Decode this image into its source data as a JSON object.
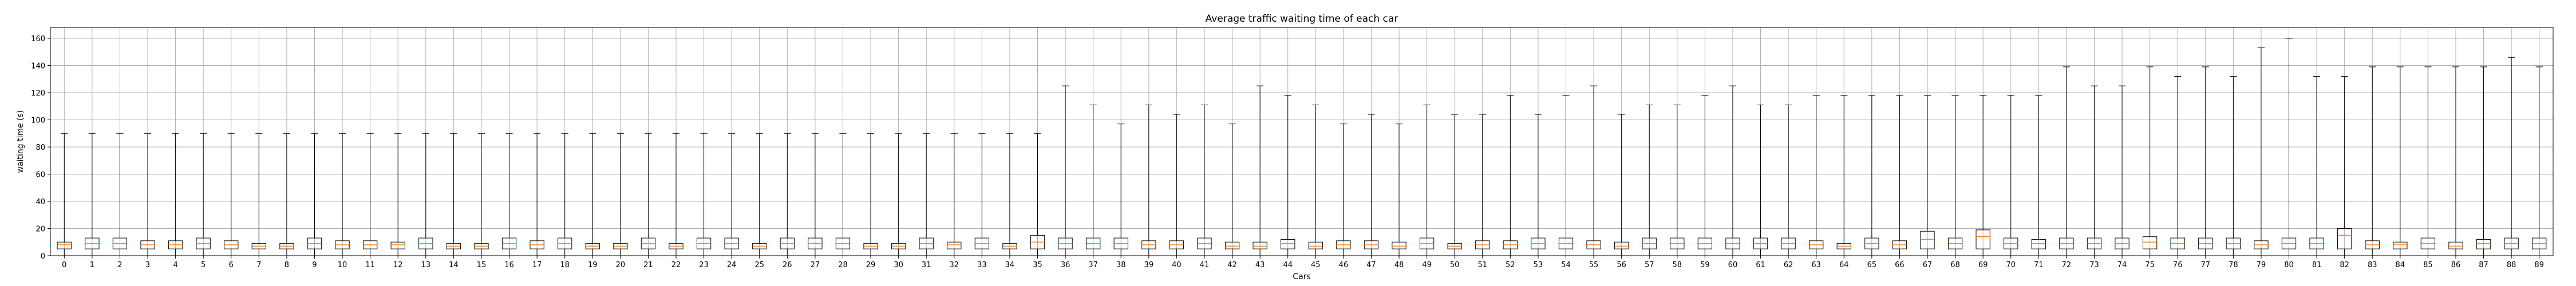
{
  "chart_data": {
    "type": "box",
    "title": "Average traffic waiting time of each car",
    "xlabel": "Cars",
    "ylabel": "waiting time (s)",
    "ylim": [
      0,
      168
    ],
    "yticks": [
      0,
      20,
      40,
      60,
      80,
      100,
      120,
      140,
      160
    ],
    "grid": true,
    "colors": {
      "box": "#000000",
      "median": "#ff7f0e",
      "whisker": "#000000",
      "grid": "#b0b0b0"
    },
    "boxes": [
      {
        "label": "0",
        "q1": 5,
        "median": 8,
        "q3": 10,
        "whislo": 0,
        "whishi": 90
      },
      {
        "label": "1",
        "q1": 5,
        "median": 9,
        "q3": 13,
        "whislo": 0,
        "whishi": 90
      },
      {
        "label": "2",
        "q1": 5,
        "median": 9,
        "q3": 13,
        "whislo": 0,
        "whishi": 90
      },
      {
        "label": "3",
        "q1": 5,
        "median": 8,
        "q3": 11,
        "whislo": 0,
        "whishi": 90
      },
      {
        "label": "4",
        "q1": 5,
        "median": 8,
        "q3": 11,
        "whislo": 0,
        "whishi": 90
      },
      {
        "label": "5",
        "q1": 5,
        "median": 9,
        "q3": 13,
        "whislo": 0,
        "whishi": 90
      },
      {
        "label": "6",
        "q1": 5,
        "median": 8,
        "q3": 11,
        "whislo": 0,
        "whishi": 90
      },
      {
        "label": "7",
        "q1": 5,
        "median": 7,
        "q3": 9,
        "whislo": 0,
        "whishi": 90
      },
      {
        "label": "8",
        "q1": 5,
        "median": 7,
        "q3": 9,
        "whislo": 0,
        "whishi": 90
      },
      {
        "label": "9",
        "q1": 5,
        "median": 9,
        "q3": 13,
        "whislo": 0,
        "whishi": 90
      },
      {
        "label": "10",
        "q1": 5,
        "median": 8,
        "q3": 11,
        "whislo": 0,
        "whishi": 90
      },
      {
        "label": "11",
        "q1": 5,
        "median": 8,
        "q3": 11,
        "whislo": 0,
        "whishi": 90
      },
      {
        "label": "12",
        "q1": 5,
        "median": 8,
        "q3": 10,
        "whislo": 0,
        "whishi": 90
      },
      {
        "label": "13",
        "q1": 5,
        "median": 9,
        "q3": 13,
        "whislo": 0,
        "whishi": 90
      },
      {
        "label": "14",
        "q1": 5,
        "median": 7,
        "q3": 9,
        "whislo": 0,
        "whishi": 90
      },
      {
        "label": "15",
        "q1": 5,
        "median": 7,
        "q3": 9,
        "whislo": 0,
        "whishi": 90
      },
      {
        "label": "16",
        "q1": 5,
        "median": 9,
        "q3": 13,
        "whislo": 0,
        "whishi": 90
      },
      {
        "label": "17",
        "q1": 5,
        "median": 8,
        "q3": 11,
        "whislo": 0,
        "whishi": 90
      },
      {
        "label": "18",
        "q1": 5,
        "median": 9,
        "q3": 13,
        "whislo": 0,
        "whishi": 90
      },
      {
        "label": "19",
        "q1": 5,
        "median": 7,
        "q3": 9,
        "whislo": 0,
        "whishi": 90
      },
      {
        "label": "20",
        "q1": 5,
        "median": 7,
        "q3": 9,
        "whislo": 0,
        "whishi": 90
      },
      {
        "label": "21",
        "q1": 5,
        "median": 9,
        "q3": 13,
        "whislo": 0,
        "whishi": 90
      },
      {
        "label": "22",
        "q1": 5,
        "median": 7,
        "q3": 9,
        "whislo": 0,
        "whishi": 90
      },
      {
        "label": "23",
        "q1": 5,
        "median": 9,
        "q3": 13,
        "whislo": 0,
        "whishi": 90
      },
      {
        "label": "24",
        "q1": 5,
        "median": 9,
        "q3": 13,
        "whislo": 0,
        "whishi": 90
      },
      {
        "label": "25",
        "q1": 5,
        "median": 7,
        "q3": 9,
        "whislo": 0,
        "whishi": 90
      },
      {
        "label": "26",
        "q1": 5,
        "median": 9,
        "q3": 13,
        "whislo": 0,
        "whishi": 90
      },
      {
        "label": "27",
        "q1": 5,
        "median": 9,
        "q3": 13,
        "whislo": 0,
        "whishi": 90
      },
      {
        "label": "28",
        "q1": 5,
        "median": 9,
        "q3": 13,
        "whislo": 0,
        "whishi": 90
      },
      {
        "label": "29",
        "q1": 5,
        "median": 7,
        "q3": 9,
        "whislo": 0,
        "whishi": 90
      },
      {
        "label": "30",
        "q1": 5,
        "median": 7,
        "q3": 9,
        "whislo": 0,
        "whishi": 90
      },
      {
        "label": "31",
        "q1": 5,
        "median": 9,
        "q3": 13,
        "whislo": 0,
        "whishi": 90
      },
      {
        "label": "32",
        "q1": 5,
        "median": 8,
        "q3": 10,
        "whislo": 0,
        "whishi": 90
      },
      {
        "label": "33",
        "q1": 5,
        "median": 9,
        "q3": 13,
        "whislo": 0,
        "whishi": 90
      },
      {
        "label": "34",
        "q1": 5,
        "median": 7,
        "q3": 9,
        "whislo": 0,
        "whishi": 90
      },
      {
        "label": "35",
        "q1": 5,
        "median": 10,
        "q3": 15,
        "whislo": 0,
        "whishi": 90
      },
      {
        "label": "36",
        "q1": 5,
        "median": 9,
        "q3": 13,
        "whislo": 0,
        "whishi": 125
      },
      {
        "label": "37",
        "q1": 5,
        "median": 9,
        "q3": 13,
        "whislo": 0,
        "whishi": 111
      },
      {
        "label": "38",
        "q1": 5,
        "median": 9,
        "q3": 13,
        "whislo": 0,
        "whishi": 97
      },
      {
        "label": "39",
        "q1": 5,
        "median": 8,
        "q3": 11,
        "whislo": 0,
        "whishi": 111
      },
      {
        "label": "40",
        "q1": 5,
        "median": 8,
        "q3": 11,
        "whislo": 0,
        "whishi": 104
      },
      {
        "label": "41",
        "q1": 5,
        "median": 9,
        "q3": 13,
        "whislo": 0,
        "whishi": 111
      },
      {
        "label": "42",
        "q1": 5,
        "median": 7,
        "q3": 10,
        "whislo": 0,
        "whishi": 97
      },
      {
        "label": "43",
        "q1": 5,
        "median": 7,
        "q3": 10,
        "whislo": 0,
        "whishi": 125
      },
      {
        "label": "44",
        "q1": 5,
        "median": 9,
        "q3": 12,
        "whislo": 0,
        "whishi": 118
      },
      {
        "label": "45",
        "q1": 5,
        "median": 7,
        "q3": 10,
        "whislo": 0,
        "whishi": 111
      },
      {
        "label": "46",
        "q1": 5,
        "median": 8,
        "q3": 11,
        "whislo": 0,
        "whishi": 97
      },
      {
        "label": "47",
        "q1": 5,
        "median": 8,
        "q3": 11,
        "whislo": 0,
        "whishi": 104
      },
      {
        "label": "48",
        "q1": 5,
        "median": 7,
        "q3": 10,
        "whislo": 0,
        "whishi": 97
      },
      {
        "label": "49",
        "q1": 5,
        "median": 9,
        "q3": 13,
        "whislo": 0,
        "whishi": 111
      },
      {
        "label": "50",
        "q1": 5,
        "median": 7,
        "q3": 9,
        "whislo": 0,
        "whishi": 104
      },
      {
        "label": "51",
        "q1": 5,
        "median": 8,
        "q3": 11,
        "whislo": 0,
        "whishi": 104
      },
      {
        "label": "52",
        "q1": 5,
        "median": 8,
        "q3": 11,
        "whislo": 0,
        "whishi": 118
      },
      {
        "label": "53",
        "q1": 5,
        "median": 9,
        "q3": 13,
        "whislo": 0,
        "whishi": 104
      },
      {
        "label": "54",
        "q1": 5,
        "median": 9,
        "q3": 13,
        "whislo": 0,
        "whishi": 118
      },
      {
        "label": "55",
        "q1": 5,
        "median": 8,
        "q3": 11,
        "whislo": 0,
        "whishi": 125
      },
      {
        "label": "56",
        "q1": 5,
        "median": 7,
        "q3": 10,
        "whislo": 0,
        "whishi": 104
      },
      {
        "label": "57",
        "q1": 5,
        "median": 9,
        "q3": 13,
        "whislo": 0,
        "whishi": 111
      },
      {
        "label": "58",
        "q1": 5,
        "median": 9,
        "q3": 13,
        "whislo": 0,
        "whishi": 111
      },
      {
        "label": "59",
        "q1": 5,
        "median": 9,
        "q3": 13,
        "whislo": 0,
        "whishi": 118
      },
      {
        "label": "60",
        "q1": 5,
        "median": 9,
        "q3": 13,
        "whislo": 0,
        "whishi": 125
      },
      {
        "label": "61",
        "q1": 5,
        "median": 9,
        "q3": 13,
        "whislo": 0,
        "whishi": 111
      },
      {
        "label": "62",
        "q1": 5,
        "median": 9,
        "q3": 13,
        "whislo": 0,
        "whishi": 111
      },
      {
        "label": "63",
        "q1": 5,
        "median": 8,
        "q3": 11,
        "whislo": 0,
        "whishi": 118
      },
      {
        "label": "64",
        "q1": 5,
        "median": 7,
        "q3": 9,
        "whislo": 0,
        "whishi": 118
      },
      {
        "label": "65",
        "q1": 5,
        "median": 9,
        "q3": 13,
        "whislo": 0,
        "whishi": 118
      },
      {
        "label": "66",
        "q1": 5,
        "median": 8,
        "q3": 11,
        "whislo": 0,
        "whishi": 118
      },
      {
        "label": "67",
        "q1": 5,
        "median": 12,
        "q3": 18,
        "whislo": 0,
        "whishi": 118
      },
      {
        "label": "68",
        "q1": 5,
        "median": 9,
        "q3": 13,
        "whislo": 0,
        "whishi": 118
      },
      {
        "label": "69",
        "q1": 5,
        "median": 14,
        "q3": 19,
        "whislo": 0,
        "whishi": 118
      },
      {
        "label": "70",
        "q1": 5,
        "median": 9,
        "q3": 13,
        "whislo": 0,
        "whishi": 118
      },
      {
        "label": "71",
        "q1": 5,
        "median": 9,
        "q3": 12,
        "whislo": 0,
        "whishi": 118
      },
      {
        "label": "72",
        "q1": 5,
        "median": 9,
        "q3": 13,
        "whislo": 0,
        "whishi": 139
      },
      {
        "label": "73",
        "q1": 5,
        "median": 9,
        "q3": 13,
        "whislo": 0,
        "whishi": 125
      },
      {
        "label": "74",
        "q1": 5,
        "median": 9,
        "q3": 13,
        "whislo": 0,
        "whishi": 125
      },
      {
        "label": "75",
        "q1": 5,
        "median": 10,
        "q3": 14,
        "whislo": 0,
        "whishi": 139
      },
      {
        "label": "76",
        "q1": 5,
        "median": 9,
        "q3": 13,
        "whislo": 0,
        "whishi": 132
      },
      {
        "label": "77",
        "q1": 5,
        "median": 9,
        "q3": 13,
        "whislo": 0,
        "whishi": 139
      },
      {
        "label": "78",
        "q1": 5,
        "median": 9,
        "q3": 13,
        "whislo": 0,
        "whishi": 132
      },
      {
        "label": "79",
        "q1": 5,
        "median": 8,
        "q3": 11,
        "whislo": 0,
        "whishi": 153
      },
      {
        "label": "80",
        "q1": 5,
        "median": 9,
        "q3": 13,
        "whislo": 0,
        "whishi": 160
      },
      {
        "label": "81",
        "q1": 5,
        "median": 9,
        "q3": 13,
        "whislo": 0,
        "whishi": 132
      },
      {
        "label": "82",
        "q1": 5,
        "median": 15,
        "q3": 20,
        "whislo": 0,
        "whishi": 132
      },
      {
        "label": "83",
        "q1": 5,
        "median": 8,
        "q3": 11,
        "whislo": 0,
        "whishi": 139
      },
      {
        "label": "84",
        "q1": 5,
        "median": 8,
        "q3": 10,
        "whislo": 0,
        "whishi": 139
      },
      {
        "label": "85",
        "q1": 5,
        "median": 9,
        "q3": 13,
        "whislo": 0,
        "whishi": 139
      },
      {
        "label": "86",
        "q1": 5,
        "median": 7,
        "q3": 10,
        "whislo": 0,
        "whishi": 139
      },
      {
        "label": "87",
        "q1": 5,
        "median": 9,
        "q3": 12,
        "whislo": 0,
        "whishi": 139
      },
      {
        "label": "88",
        "q1": 5,
        "median": 9,
        "q3": 13,
        "whislo": 0,
        "whishi": 146
      },
      {
        "label": "89",
        "q1": 5,
        "median": 9,
        "q3": 13,
        "whislo": 0,
        "whishi": 139
      }
    ]
  }
}
